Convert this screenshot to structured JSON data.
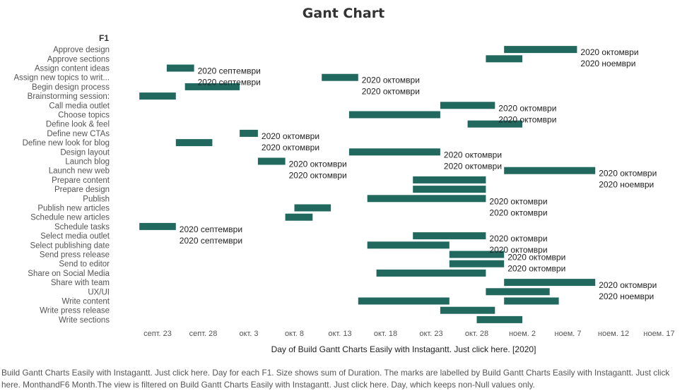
{
  "title": "Gant Chart",
  "row_header": "F1",
  "caption": "Build Gantt Charts Easily with Instagantt. Just click here. Day for each F1. Size shows sum of Duration. The marks are labelled by Build Gantt Charts Easily with Instagantt. Just click here. MonthandF6 Month.The view is filtered on Build Gantt Charts Easily with Instagantt. Just click here. Day, which keeps non-Null values only.",
  "colors": {
    "bar": "#21695f",
    "text": "#333333"
  },
  "chart_data": {
    "type": "gantt",
    "title": "Gant Chart",
    "xlabel": "Day of Build Gantt Charts Easily with Instagantt. Just click here. [2020]",
    "x_range": [
      "2020-09-20",
      "2020-11-19"
    ],
    "x_ticks": [
      {
        "date": "2020-09-23",
        "label": "септ. 23"
      },
      {
        "date": "2020-09-28",
        "label": "септ. 28"
      },
      {
        "date": "2020-10-03",
        "label": "окт. 3"
      },
      {
        "date": "2020-10-08",
        "label": "окт. 8"
      },
      {
        "date": "2020-10-13",
        "label": "окт. 13"
      },
      {
        "date": "2020-10-18",
        "label": "окт. 18"
      },
      {
        "date": "2020-10-23",
        "label": "окт. 23"
      },
      {
        "date": "2020-10-28",
        "label": "окт. 28"
      },
      {
        "date": "2020-11-02",
        "label": "ноем. 2"
      },
      {
        "date": "2020-11-07",
        "label": "ноем. 7"
      },
      {
        "date": "2020-11-12",
        "label": "ноем. 12"
      },
      {
        "date": "2020-11-17",
        "label": "ноем. 17"
      }
    ],
    "tasks": [
      {
        "name": "Approve design",
        "start": "2020-10-31",
        "end": "2020-11-08",
        "labels": [
          "2020 октомври",
          "2020 ноември"
        ]
      },
      {
        "name": "Approve sections",
        "start": "2020-10-29",
        "end": "2020-11-02",
        "labels": []
      },
      {
        "name": "Assign content ideas",
        "start": "2020-09-24",
        "end": "2020-09-27",
        "labels": [
          "2020 септември",
          "2020 септември"
        ]
      },
      {
        "name": "Assign new topics to writ...",
        "start": "2020-10-11",
        "end": "2020-10-15",
        "labels": [
          "2020 октомври",
          "2020 октомври"
        ]
      },
      {
        "name": "Begin design process",
        "start": "2020-09-26",
        "end": "2020-10-02",
        "labels": []
      },
      {
        "name": "Brainstorming session:",
        "start": "2020-09-21",
        "end": "2020-09-25",
        "labels": []
      },
      {
        "name": "Call media outlet",
        "start": "2020-10-24",
        "end": "2020-10-30",
        "labels": [
          "2020 октомври",
          "2020 октомври"
        ]
      },
      {
        "name": "Choose topics",
        "start": "2020-10-14",
        "end": "2020-10-24",
        "labels": []
      },
      {
        "name": "Define look & feel",
        "start": "2020-10-27",
        "end": "2020-11-02",
        "labels": []
      },
      {
        "name": "Define new CTAs",
        "start": "2020-10-02",
        "end": "2020-10-04",
        "labels": [
          "2020 октомври",
          "2020 октомври"
        ]
      },
      {
        "name": "Define new look for blog",
        "start": "2020-09-25",
        "end": "2020-09-29",
        "labels": []
      },
      {
        "name": "Design layout",
        "start": "2020-10-14",
        "end": "2020-10-24",
        "labels": [
          "2020 октомври",
          "2020 октомври"
        ]
      },
      {
        "name": "Launch blog",
        "start": "2020-10-04",
        "end": "2020-10-07",
        "labels": [
          "2020 октомври",
          "2020 октомври"
        ]
      },
      {
        "name": "Launch new web",
        "start": "2020-10-31",
        "end": "2020-11-10",
        "labels": [
          "2020 октомври",
          "2020 ноември"
        ]
      },
      {
        "name": "Prepare content",
        "start": "2020-10-21",
        "end": "2020-10-29",
        "labels": []
      },
      {
        "name": "Prepare design",
        "start": "2020-10-21",
        "end": "2020-10-29",
        "labels": []
      },
      {
        "name": "Publish",
        "start": "2020-10-16",
        "end": "2020-10-29",
        "labels": [
          "2020 октомври",
          "2020 октомври"
        ]
      },
      {
        "name": "Publish new articles",
        "start": "2020-10-08",
        "end": "2020-10-12",
        "labels": []
      },
      {
        "name": "Schedule new articles",
        "start": "2020-10-07",
        "end": "2020-10-10",
        "labels": []
      },
      {
        "name": "Schedule tasks",
        "start": "2020-09-21",
        "end": "2020-09-25",
        "labels": [
          "2020 септември",
          "2020 септември"
        ]
      },
      {
        "name": "Select media outlet",
        "start": "2020-10-21",
        "end": "2020-10-29",
        "labels": [
          "2020 октомври",
          "2020 октомври"
        ]
      },
      {
        "name": "Select publishing date",
        "start": "2020-10-16",
        "end": "2020-10-25",
        "labels": []
      },
      {
        "name": "Send press release",
        "start": "2020-10-25",
        "end": "2020-10-31",
        "labels": [
          "2020 октомври",
          "2020 октомври"
        ]
      },
      {
        "name": "Send to editor",
        "start": "2020-10-25",
        "end": "2020-10-31",
        "labels": []
      },
      {
        "name": "Share on Social Media",
        "start": "2020-10-17",
        "end": "2020-10-29",
        "labels": []
      },
      {
        "name": "Share with team",
        "start": "2020-10-31",
        "end": "2020-11-10",
        "labels": [
          "2020 октомври",
          "2020 ноември"
        ]
      },
      {
        "name": "UX/UI",
        "start": "2020-10-29",
        "end": "2020-11-05",
        "labels": []
      },
      {
        "name": "Write content",
        "start": "2020-10-15",
        "end": "2020-10-25",
        "labels": []
      },
      {
        "name": "Write content",
        "start": "2020-10-31",
        "end": "2020-11-06",
        "labels": []
      },
      {
        "name": "Write press release",
        "start": "2020-10-24",
        "end": "2020-10-30",
        "labels": []
      },
      {
        "name": "Write sections",
        "start": "2020-10-28",
        "end": "2020-11-02",
        "labels": []
      }
    ],
    "grid": false,
    "legend": "none"
  }
}
